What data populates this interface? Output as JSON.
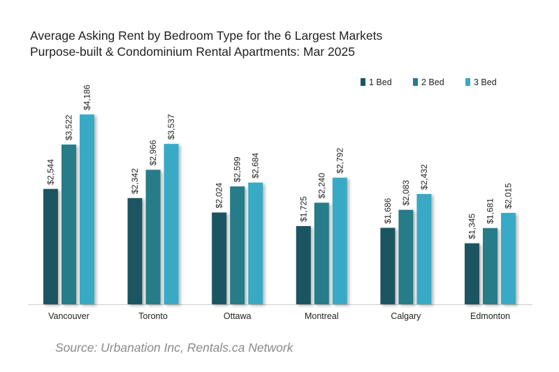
{
  "chart_data": {
    "type": "bar",
    "title": "Average Asking Rent by Bedroom Type for the 6 Largest Markets",
    "subtitle": "Purpose-built & Condominium Rental Apartments: Mar 2025",
    "categories": [
      "Vancouver",
      "Toronto",
      "Ottawa",
      "Montreal",
      "Calgary",
      "Edmonton"
    ],
    "series": [
      {
        "name": "1 Bed",
        "color": "#1e5562",
        "values": [
          2544,
          2342,
          2024,
          1725,
          1686,
          1345
        ],
        "labels": [
          "$2,544",
          "$2,342",
          "$2,024",
          "$1,725",
          "$1,686",
          "$1,345"
        ]
      },
      {
        "name": "2 Bed",
        "color": "#277b89",
        "values": [
          3522,
          2966,
          2599,
          2240,
          2083,
          1681
        ],
        "labels": [
          "$3,522",
          "$2,966",
          "$2,599",
          "$2,240",
          "$2,083",
          "$1,681"
        ]
      },
      {
        "name": "3 Bed",
        "color": "#38aac6",
        "values": [
          4186,
          3537,
          2684,
          2792,
          2432,
          2015
        ],
        "labels": [
          "$4,186",
          "$3,537",
          "$2,684",
          "$2,792",
          "$2,432",
          "$2,015"
        ]
      }
    ],
    "xlabel": "",
    "ylabel": "",
    "ylim": [
      0,
      4186
    ],
    "grid": false,
    "legend": "top-right",
    "source": "Source: Urbanation Inc, Rentals.ca Network"
  }
}
